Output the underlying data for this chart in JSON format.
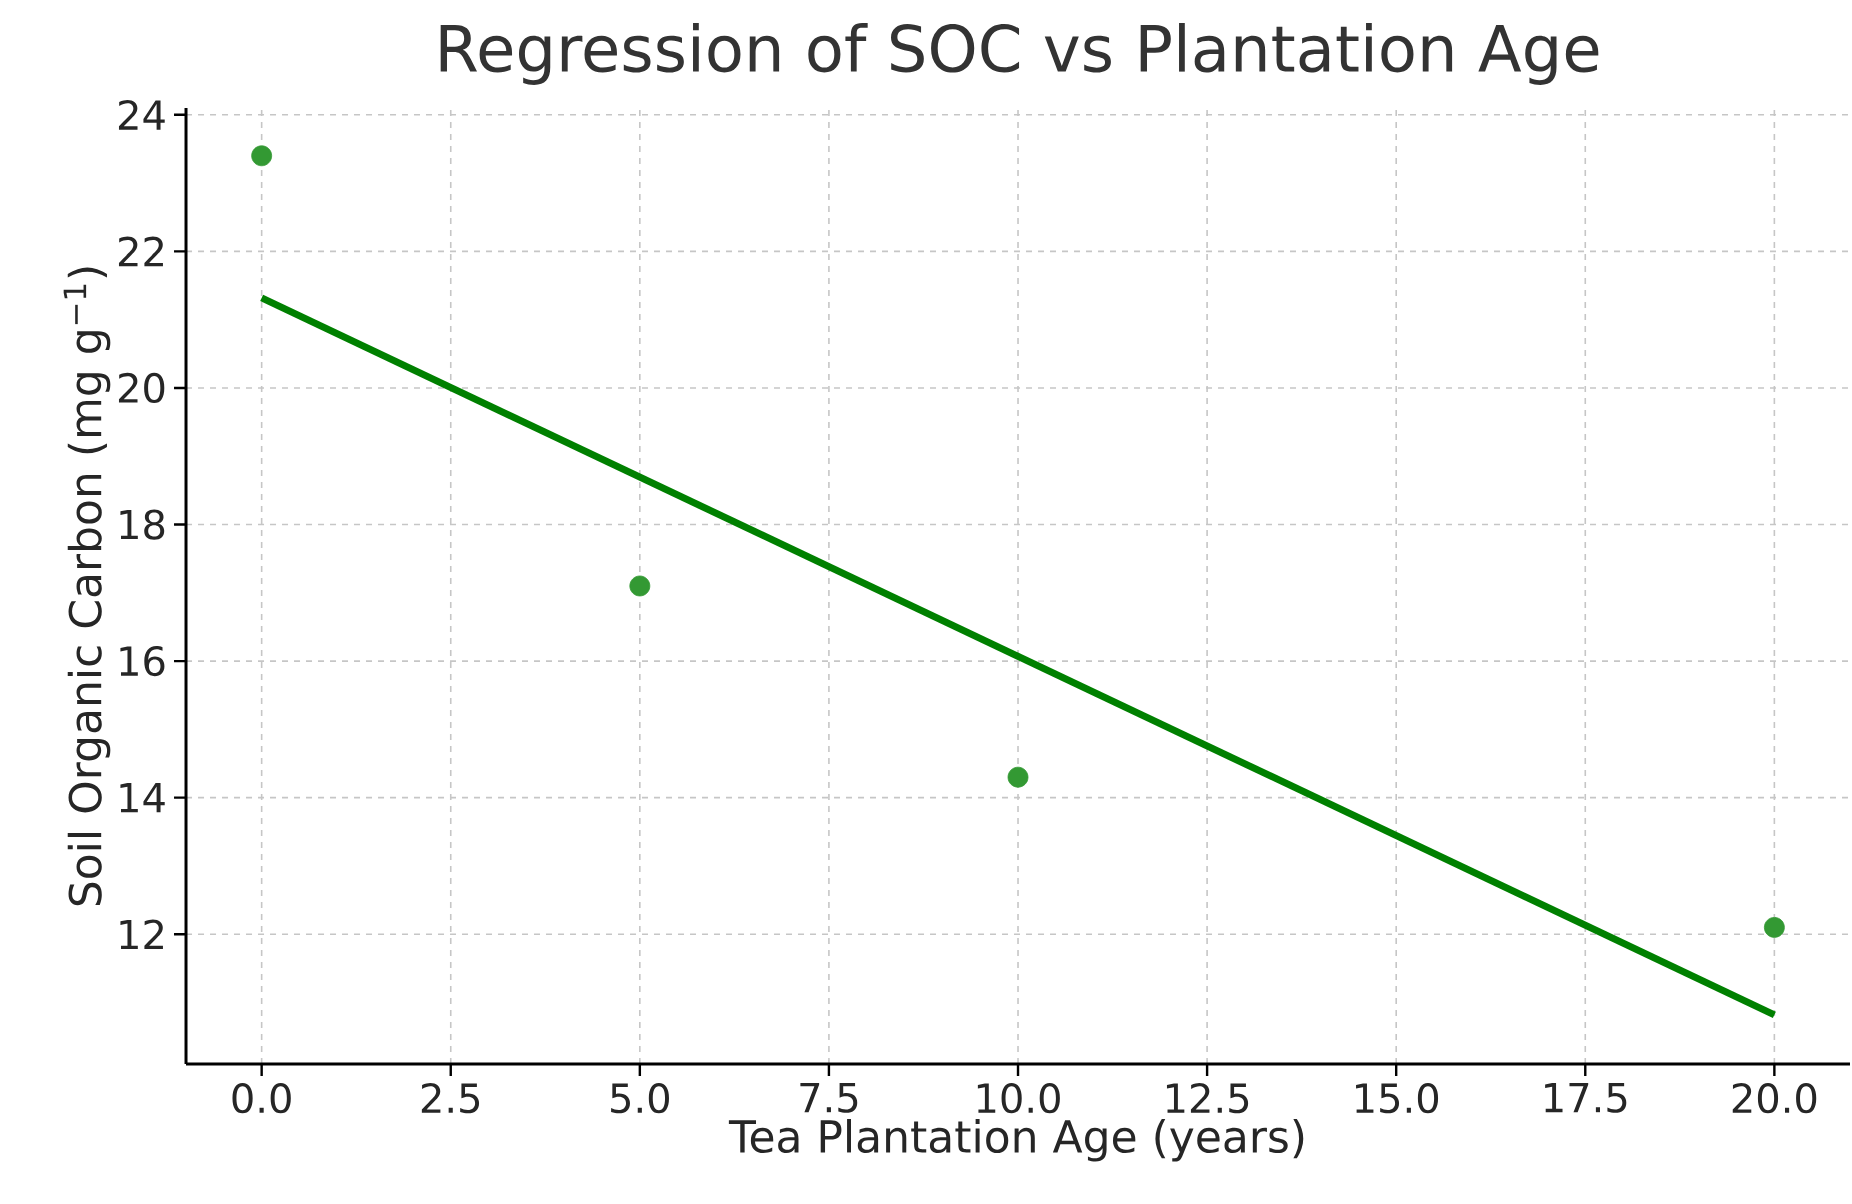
{
  "chart_data": {
    "type": "scatter",
    "title": "Regression of SOC vs Plantation Age",
    "xlabel": "Tea Plantation Age (years)",
    "ylabel": "Soil Organic Carbon (mg g$^{−1}$)",
    "series": [
      {
        "color": "#339933",
        "x": [
          0,
          5,
          10,
          20
        ],
        "values": [
          23.4,
          17.1,
          14.3,
          12.1
        ],
        "marker": "circle"
      },
      {
        "type": "line",
        "color": "#008000",
        "x": [
          0,
          20
        ],
        "values": [
          21.32,
          10.82
        ],
        "marker": "none",
        "line_style": "solid"
      }
    ],
    "xlim": [
      -1,
      21
    ],
    "ylim": [
      10.1,
      24.1
    ],
    "xticks": [
      {
        "value": 0,
        "label": "0.0"
      },
      {
        "value": 2.5,
        "label": "2.5"
      },
      {
        "value": 5,
        "label": "5.0"
      },
      {
        "value": 7.5,
        "label": "7.5"
      },
      {
        "value": 10,
        "label": "10.0"
      },
      {
        "value": 12.5,
        "label": "12.5"
      },
      {
        "value": 15,
        "label": "15.0"
      },
      {
        "value": 17.5,
        "label": "17.5"
      },
      {
        "value": 20,
        "label": "20.0"
      }
    ],
    "yticks": [
      12,
      14,
      16,
      18,
      20,
      22,
      24
    ],
    "grid": true
  }
}
